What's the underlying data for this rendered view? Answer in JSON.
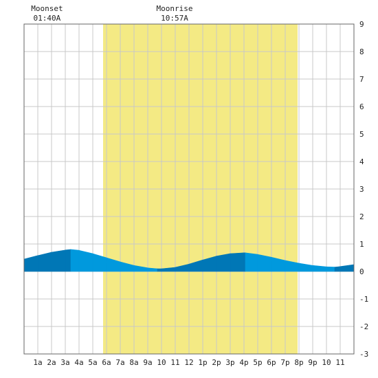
{
  "chart_data": {
    "type": "area",
    "title": "",
    "xlabel": "",
    "ylabel": "",
    "xlim": [
      0,
      24
    ],
    "ylim": [
      -3,
      9
    ],
    "yticks": [
      -3,
      -2,
      -1,
      0,
      1,
      2,
      3,
      4,
      5,
      6,
      7,
      8,
      9
    ],
    "xtick_labels": [
      "1a",
      "2a",
      "3a",
      "4a",
      "5a",
      "6a",
      "7a",
      "8a",
      "9a",
      "10",
      "11",
      "12",
      "1p",
      "2p",
      "3p",
      "4p",
      "5p",
      "6p",
      "7p",
      "8p",
      "9p",
      "10",
      "11"
    ],
    "grid": true,
    "daylight": {
      "start_hour": 5.75,
      "end_hour": 19.9,
      "color": "#f4ea84"
    },
    "moon_events": [
      {
        "label": "Moonset",
        "time": "01:40A",
        "hour": 1.67
      },
      {
        "label": "Moonrise",
        "time": "10:57A",
        "hour": 10.95
      }
    ],
    "series": [
      {
        "x": [
          0,
          1,
          2,
          3,
          3.4,
          4,
          5,
          6,
          7,
          8,
          9,
          9.7,
          10,
          11,
          12,
          13,
          14,
          15,
          16,
          16.1,
          17,
          18,
          19,
          20,
          21,
          22,
          22.6,
          23,
          24
        ],
        "values": [
          0.45,
          0.58,
          0.7,
          0.78,
          0.8,
          0.77,
          0.65,
          0.5,
          0.35,
          0.22,
          0.13,
          0.1,
          0.1,
          0.15,
          0.27,
          0.42,
          0.56,
          0.65,
          0.68,
          0.68,
          0.62,
          0.52,
          0.4,
          0.3,
          0.22,
          0.17,
          0.16,
          0.18,
          0.25
        ]
      }
    ],
    "colors": {
      "tide_rising": "#0077b6",
      "tide_falling": "#0099dd",
      "grid": "#c8c8c8",
      "frame": "#666666"
    }
  }
}
